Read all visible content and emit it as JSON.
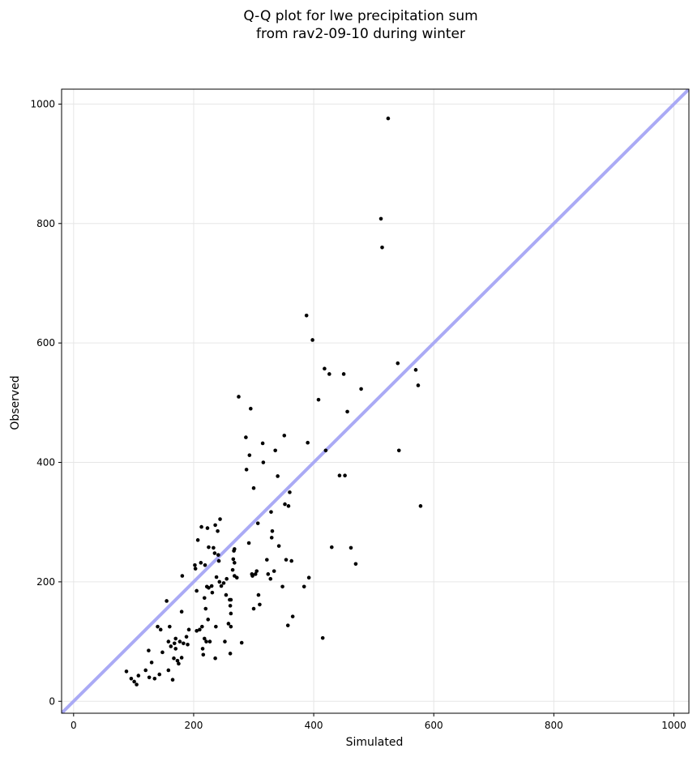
{
  "chart_data": {
    "type": "scatter",
    "title_lines": [
      "Q-Q plot for lwe precipitation sum",
      "from rav2-09-10 during winter"
    ],
    "xlabel": "Simulated",
    "ylabel": "Observed",
    "xlim": [
      -20,
      1025
    ],
    "ylim": [
      -20,
      1025
    ],
    "xticks": [
      0,
      200,
      400,
      600,
      800,
      1000
    ],
    "yticks": [
      0,
      200,
      400,
      600,
      800,
      1000
    ],
    "grid": true,
    "reference_line": {
      "slope": 1,
      "intercept": 0,
      "color": "#aaaaf5"
    },
    "point_color": "#000000",
    "points": [
      [
        88,
        50
      ],
      [
        96,
        38
      ],
      [
        101,
        33
      ],
      [
        105,
        28
      ],
      [
        108,
        43
      ],
      [
        120,
        52
      ],
      [
        125,
        85
      ],
      [
        126,
        40
      ],
      [
        130,
        65
      ],
      [
        135,
        38
      ],
      [
        140,
        125
      ],
      [
        143,
        45
      ],
      [
        145,
        120
      ],
      [
        148,
        82
      ],
      [
        155,
        168
      ],
      [
        158,
        100
      ],
      [
        158,
        52
      ],
      [
        160,
        125
      ],
      [
        162,
        92
      ],
      [
        165,
        36
      ],
      [
        167,
        72
      ],
      [
        168,
        97
      ],
      [
        170,
        88
      ],
      [
        170,
        105
      ],
      [
        173,
        68
      ],
      [
        175,
        63
      ],
      [
        177,
        100
      ],
      [
        180,
        150
      ],
      [
        180,
        73
      ],
      [
        181,
        210
      ],
      [
        183,
        97
      ],
      [
        188,
        108
      ],
      [
        190,
        95
      ],
      [
        192,
        120
      ],
      [
        202,
        228
      ],
      [
        203,
        222
      ],
      [
        205,
        185
      ],
      [
        205,
        118
      ],
      [
        207,
        270
      ],
      [
        210,
        120
      ],
      [
        212,
        232
      ],
      [
        213,
        292
      ],
      [
        214,
        125
      ],
      [
        215,
        88
      ],
      [
        216,
        78
      ],
      [
        218,
        173
      ],
      [
        218,
        105
      ],
      [
        219,
        228
      ],
      [
        220,
        155
      ],
      [
        221,
        100
      ],
      [
        222,
        192
      ],
      [
        223,
        290
      ],
      [
        224,
        137
      ],
      [
        225,
        190
      ],
      [
        225,
        258
      ],
      [
        227,
        100
      ],
      [
        230,
        193
      ],
      [
        231,
        182
      ],
      [
        233,
        257
      ],
      [
        235,
        248
      ],
      [
        236,
        295
      ],
      [
        236,
        72
      ],
      [
        237,
        125
      ],
      [
        238,
        208
      ],
      [
        240,
        285
      ],
      [
        241,
        245
      ],
      [
        242,
        235
      ],
      [
        243,
        200
      ],
      [
        244,
        305
      ],
      [
        246,
        193
      ],
      [
        250,
        198
      ],
      [
        252,
        100
      ],
      [
        254,
        178
      ],
      [
        255,
        205
      ],
      [
        258,
        130
      ],
      [
        260,
        170
      ],
      [
        261,
        160
      ],
      [
        261,
        80
      ],
      [
        262,
        170
      ],
      [
        262,
        147
      ],
      [
        262,
        125
      ],
      [
        265,
        220
      ],
      [
        266,
        238
      ],
      [
        267,
        252
      ],
      [
        268,
        232
      ],
      [
        268,
        210
      ],
      [
        268,
        255
      ],
      [
        272,
        207
      ],
      [
        275,
        510
      ],
      [
        280,
        98
      ],
      [
        287,
        442
      ],
      [
        288,
        388
      ],
      [
        292,
        265
      ],
      [
        293,
        412
      ],
      [
        295,
        490
      ],
      [
        297,
        213
      ],
      [
        298,
        210
      ],
      [
        300,
        155
      ],
      [
        300,
        357
      ],
      [
        303,
        213
      ],
      [
        305,
        218
      ],
      [
        307,
        298
      ],
      [
        308,
        178
      ],
      [
        310,
        162
      ],
      [
        315,
        432
      ],
      [
        316,
        400
      ],
      [
        322,
        237
      ],
      [
        324,
        213
      ],
      [
        328,
        205
      ],
      [
        329,
        317
      ],
      [
        330,
        274
      ],
      [
        331,
        285
      ],
      [
        334,
        218
      ],
      [
        336,
        420
      ],
      [
        340,
        377
      ],
      [
        342,
        260
      ],
      [
        348,
        192
      ],
      [
        351,
        445
      ],
      [
        352,
        330
      ],
      [
        354,
        237
      ],
      [
        357,
        127
      ],
      [
        358,
        327
      ],
      [
        360,
        350
      ],
      [
        363,
        235
      ],
      [
        365,
        142
      ],
      [
        384,
        192
      ],
      [
        388,
        646
      ],
      [
        390,
        433
      ],
      [
        392,
        207
      ],
      [
        398,
        605
      ],
      [
        408,
        505
      ],
      [
        415,
        106
      ],
      [
        418,
        557
      ],
      [
        420,
        420
      ],
      [
        426,
        548
      ],
      [
        430,
        258
      ],
      [
        443,
        378
      ],
      [
        450,
        548
      ],
      [
        452,
        378
      ],
      [
        456,
        485
      ],
      [
        462,
        257
      ],
      [
        470,
        230
      ],
      [
        479,
        523
      ],
      [
        512,
        808
      ],
      [
        514,
        760
      ],
      [
        524,
        976
      ],
      [
        540,
        566
      ],
      [
        542,
        420
      ],
      [
        570,
        555
      ],
      [
        574,
        529
      ],
      [
        578,
        327
      ]
    ]
  }
}
